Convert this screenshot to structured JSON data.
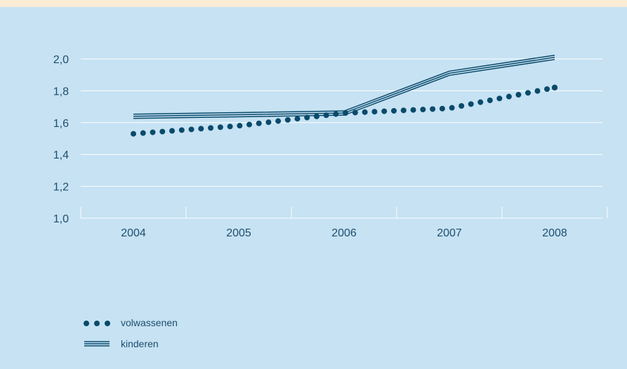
{
  "colors": {
    "background": "#c6e2f3",
    "top_band": "#fcebd5",
    "series": "#0a4a6b",
    "axis": "#ffffff",
    "text": "#1f4e6e"
  },
  "chart_data": {
    "type": "line",
    "categories": [
      "2004",
      "2005",
      "2006",
      "2007",
      "2008"
    ],
    "ylim": [
      1.0,
      2.0
    ],
    "yticks": [
      "1,0",
      "1,2",
      "1,4",
      "1,6",
      "1,8",
      "2,0"
    ],
    "grid": true,
    "legend_position": "bottom-left",
    "series": [
      {
        "name": "volwassenen",
        "style": "dotted",
        "values": [
          1.53,
          1.58,
          1.66,
          1.69,
          1.82
        ]
      },
      {
        "name": "kinderen",
        "style": "triple-line",
        "values": [
          1.64,
          1.65,
          1.66,
          1.91,
          2.01
        ]
      }
    ]
  }
}
